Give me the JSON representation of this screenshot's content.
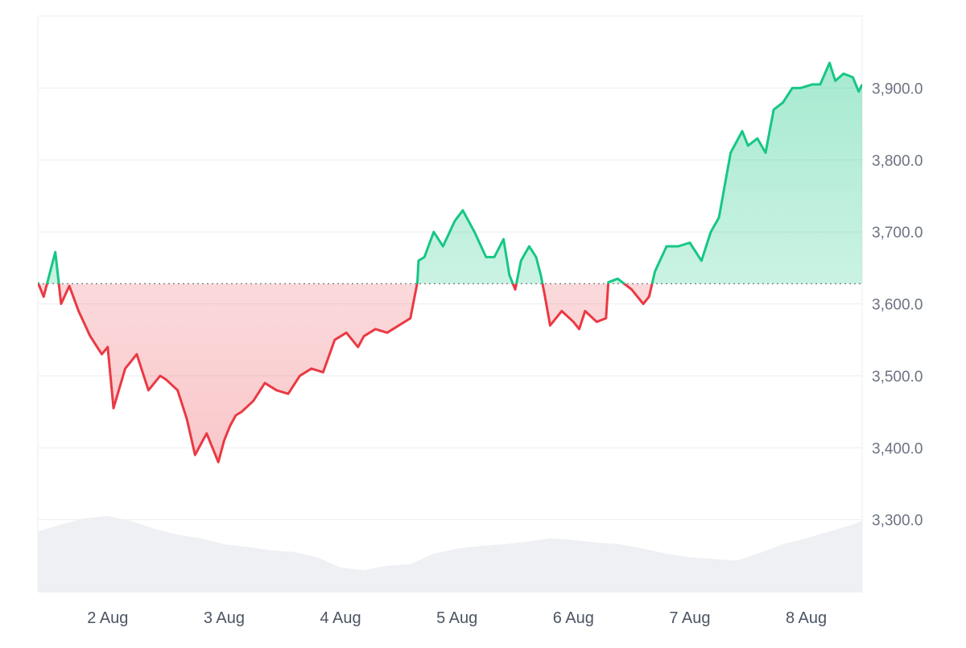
{
  "chart_data": {
    "type": "area",
    "title": "",
    "xlabel": "",
    "ylabel": "",
    "x_ticks": [
      "2 Aug",
      "3 Aug",
      "4 Aug",
      "5 Aug",
      "6 Aug",
      "7 Aug",
      "8 Aug"
    ],
    "y_ticks": [
      "3,300.0",
      "3,400.0",
      "3,500.0",
      "3,600.0",
      "3,700.0",
      "3,800.0",
      "3,900.0"
    ],
    "ylim": [
      3200,
      4000
    ],
    "baseline": 3628,
    "grid": true,
    "colors": {
      "above": "#16c784",
      "below": "#ea3943",
      "above_fill": "#d7f5e7",
      "below_fill": "#fbdadd",
      "volume": "#eef0f3",
      "grid": "#eceef1"
    },
    "series": [
      {
        "x": [
          1.4,
          1.45,
          1.55,
          1.6,
          1.67,
          1.75,
          1.85,
          1.95,
          2.0,
          2.05,
          2.15,
          2.25,
          2.35,
          2.45,
          2.5,
          2.6,
          2.68,
          2.75,
          2.85,
          2.95,
          3.0,
          3.05,
          3.1,
          3.15,
          3.25,
          3.35,
          3.45,
          3.55,
          3.65,
          3.75,
          3.85,
          3.95,
          4.05,
          4.15,
          4.2,
          4.3,
          4.4,
          4.5,
          4.6,
          4.66,
          4.67,
          4.72,
          4.8,
          4.88,
          4.98,
          5.05,
          5.15,
          5.25,
          5.32,
          5.4,
          5.45,
          5.5,
          5.55,
          5.62,
          5.68,
          5.72,
          5.75,
          5.8,
          5.9,
          6.0,
          6.05,
          6.1,
          6.2,
          6.28,
          6.3,
          6.38,
          6.5,
          6.6,
          6.65,
          6.7,
          6.8,
          6.9,
          7.0,
          7.1,
          7.18,
          7.25,
          7.35,
          7.45,
          7.5,
          7.58,
          7.65,
          7.72,
          7.8,
          7.88,
          7.95,
          8.05,
          8.12,
          8.2,
          8.25,
          8.32,
          8.4,
          8.45,
          8.48
        ],
        "values": [
          3630,
          3610,
          3672,
          3600,
          3625,
          3590,
          3555,
          3530,
          3540,
          3455,
          3510,
          3530,
          3480,
          3500,
          3495,
          3480,
          3440,
          3390,
          3420,
          3380,
          3410,
          3430,
          3445,
          3450,
          3465,
          3490,
          3480,
          3475,
          3500,
          3510,
          3505,
          3550,
          3560,
          3540,
          3555,
          3565,
          3560,
          3570,
          3580,
          3630,
          3660,
          3665,
          3700,
          3680,
          3715,
          3730,
          3700,
          3665,
          3665,
          3690,
          3640,
          3620,
          3660,
          3680,
          3665,
          3640,
          3615,
          3570,
          3590,
          3575,
          3565,
          3590,
          3575,
          3580,
          3630,
          3635,
          3620,
          3600,
          3610,
          3645,
          3680,
          3680,
          3685,
          3660,
          3700,
          3720,
          3810,
          3840,
          3820,
          3830,
          3810,
          3870,
          3880,
          3900,
          3900,
          3905,
          3905,
          3935,
          3910,
          3920,
          3915,
          3895,
          3905
        ]
      }
    ],
    "volume": {
      "x": [
        1.4,
        1.6,
        1.8,
        2.0,
        2.2,
        2.4,
        2.6,
        2.8,
        3.0,
        3.2,
        3.4,
        3.6,
        3.8,
        4.0,
        4.2,
        4.4,
        4.6,
        4.8,
        5.0,
        5.2,
        5.4,
        5.6,
        5.8,
        6.0,
        6.2,
        6.4,
        6.6,
        6.8,
        7.0,
        7.2,
        7.4,
        7.6,
        7.8,
        8.0,
        8.2,
        8.4,
        8.48
      ],
      "values": [
        0.7,
        0.78,
        0.85,
        0.88,
        0.82,
        0.73,
        0.66,
        0.62,
        0.55,
        0.52,
        0.48,
        0.46,
        0.4,
        0.28,
        0.25,
        0.3,
        0.32,
        0.44,
        0.5,
        0.53,
        0.55,
        0.58,
        0.62,
        0.6,
        0.57,
        0.55,
        0.5,
        0.44,
        0.4,
        0.38,
        0.36,
        0.45,
        0.55,
        0.62,
        0.7,
        0.78,
        0.82
      ]
    }
  }
}
